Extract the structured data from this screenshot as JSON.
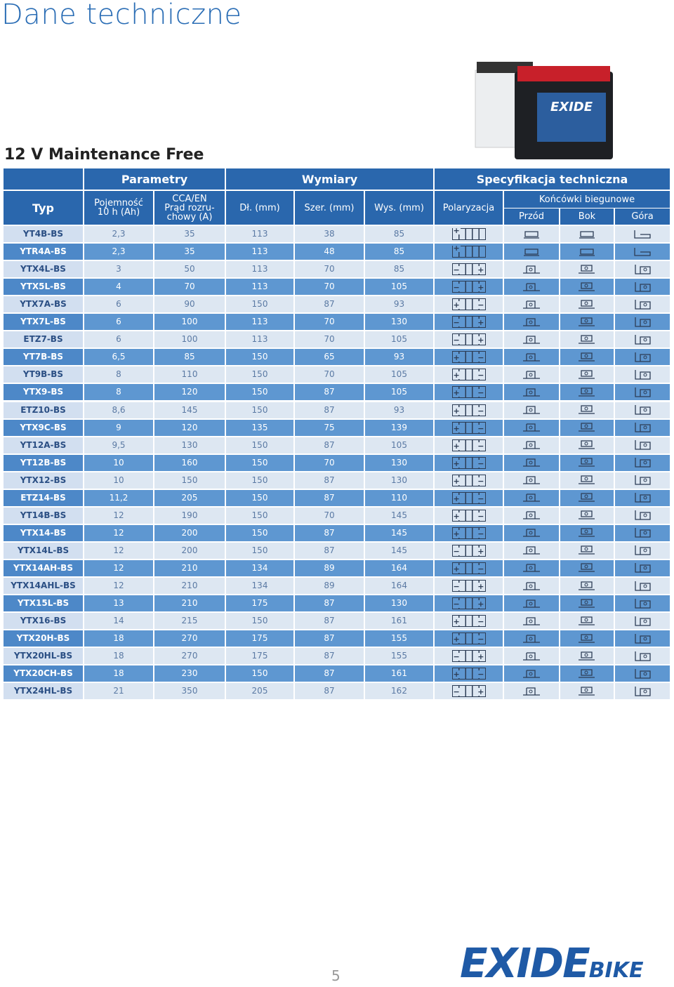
{
  "header": {
    "title": "Dane techniczne",
    "subtitle": "12 V Maintenance Free"
  },
  "table": {
    "groups": [
      "Parametry",
      "Wymiary",
      "Specyfikacja techniczna"
    ],
    "columns": [
      "Typ",
      "Pojemność\n10 h (Ah)",
      "CCA/EN\nPrąd rozru-\nchowy (A)",
      "Dł. (mm)",
      "Szer. (mm)",
      "Wys. (mm)",
      "Polaryzacja"
    ],
    "terminals": {
      "title": "Końcówki biegunowe",
      "columns": [
        "Przód",
        "Bok",
        "Góra"
      ]
    },
    "rows": [
      [
        "YT4B-BS",
        "2,3",
        35,
        113,
        38,
        85,
        [
          "+"
        ]
      ],
      [
        "YTR4A-BS",
        "2,3",
        35,
        113,
        48,
        85,
        [
          "+"
        ]
      ],
      [
        "YTX4L-BS",
        3,
        50,
        113,
        70,
        85,
        [
          "−",
          "+"
        ]
      ],
      [
        "YTX5L-BS",
        4,
        70,
        113,
        70,
        105,
        [
          "−",
          "+"
        ]
      ],
      [
        "YTX7A-BS",
        6,
        90,
        150,
        87,
        93,
        [
          "+",
          "−"
        ]
      ],
      [
        "YTX7L-BS",
        6,
        100,
        113,
        70,
        130,
        [
          "−",
          "+"
        ]
      ],
      [
        "ETZ7-BS",
        6,
        100,
        113,
        70,
        105,
        [
          "−",
          "+"
        ]
      ],
      [
        "YT7B-BS",
        "6,5",
        85,
        150,
        65,
        93,
        [
          "+",
          "−"
        ]
      ],
      [
        "YT9B-BS",
        8,
        110,
        150,
        70,
        105,
        [
          "+",
          "−"
        ]
      ],
      [
        "YTX9-BS",
        8,
        120,
        150,
        87,
        105,
        [
          "+",
          "−"
        ]
      ],
      [
        "ETZ10-BS",
        "8,6",
        145,
        150,
        87,
        93,
        [
          "+",
          "−"
        ]
      ],
      [
        "YTX9C-BS",
        9,
        120,
        135,
        75,
        139,
        [
          "+",
          "−"
        ]
      ],
      [
        "YT12A-BS",
        "9,5",
        130,
        150,
        87,
        105,
        [
          "+",
          "−"
        ]
      ],
      [
        "YT12B-BS",
        10,
        160,
        150,
        70,
        130,
        [
          "+",
          "−"
        ]
      ],
      [
        "YTX12-BS",
        10,
        150,
        150,
        87,
        130,
        [
          "+",
          "−"
        ]
      ],
      [
        "ETZ14-BS",
        "11,2",
        205,
        150,
        87,
        110,
        [
          "+",
          "−"
        ]
      ],
      [
        "YT14B-BS",
        12,
        190,
        150,
        70,
        145,
        [
          "+",
          "−"
        ]
      ],
      [
        "YTX14-BS",
        12,
        200,
        150,
        87,
        145,
        [
          "+",
          "−"
        ]
      ],
      [
        "YTX14L-BS",
        12,
        200,
        150,
        87,
        145,
        [
          "−",
          "+"
        ]
      ],
      [
        "YTX14AH-BS",
        12,
        210,
        134,
        89,
        164,
        [
          "+",
          "−"
        ]
      ],
      [
        "YTX14AHL-BS",
        12,
        210,
        134,
        89,
        164,
        [
          "−",
          "+"
        ]
      ],
      [
        "YTX15L-BS",
        13,
        210,
        175,
        87,
        130,
        [
          "−",
          "+"
        ]
      ],
      [
        "YTX16-BS",
        14,
        215,
        150,
        87,
        161,
        [
          "+",
          "−"
        ]
      ],
      [
        "YTX20H-BS",
        18,
        270,
        175,
        87,
        155,
        [
          "+",
          "−"
        ]
      ],
      [
        "YTX20HL-BS",
        18,
        270,
        175,
        87,
        155,
        [
          "−",
          "+"
        ]
      ],
      [
        "YTX20CH-BS",
        18,
        230,
        150,
        87,
        161,
        [
          "+",
          "−"
        ]
      ],
      [
        "YTX24HL-BS",
        21,
        350,
        205,
        87,
        162,
        [
          "−",
          "+"
        ]
      ]
    ]
  },
  "footer": {
    "page": 5,
    "brand": "EXIDE",
    "brand_sub": "BIKE"
  }
}
